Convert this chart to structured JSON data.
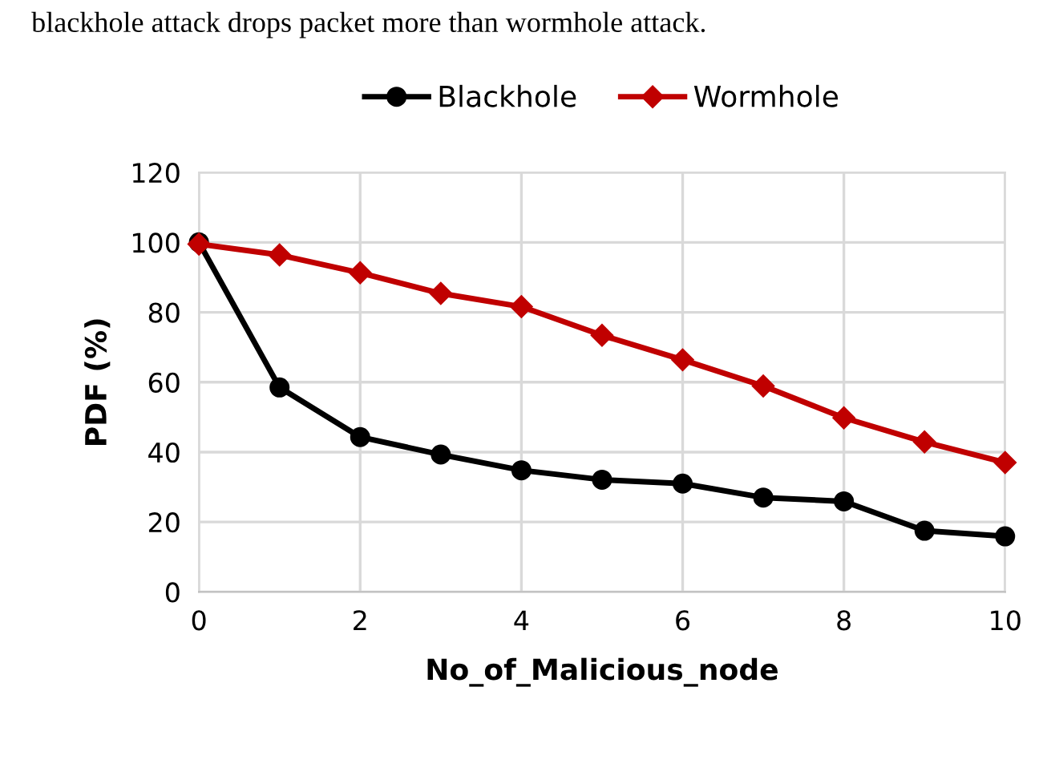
{
  "chart_data": {
    "type": "line",
    "xlabel": "No_of_Malicious_node",
    "ylabel": "PDF (%)",
    "annotations": [
      "blackhole attack drops packet more than wormhole attack."
    ],
    "x": [
      0,
      1,
      2,
      3,
      4,
      5,
      6,
      7,
      8,
      9,
      10
    ],
    "series": [
      {
        "name": "Blackhole",
        "color": "#000000",
        "marker": "circle",
        "values": [
          100,
          58.5,
          44.3,
          39.3,
          34.8,
          32.1,
          31,
          27,
          25.9,
          17.5,
          15.9
        ]
      },
      {
        "name": "Wormhole",
        "color": "#c00000",
        "marker": "diamond",
        "values": [
          99.5,
          96.4,
          91.3,
          85.4,
          81.6,
          73.4,
          66.4,
          58.9,
          49.8,
          42.9,
          37
        ]
      }
    ],
    "xlim": [
      0,
      10
    ],
    "xticks": [
      0,
      2,
      4,
      6,
      8,
      10
    ],
    "ylim": [
      0,
      120
    ],
    "yticks": [
      0,
      20,
      40,
      60,
      80,
      100,
      120
    ],
    "grid": true,
    "legend": "top",
    "line_style": "solid"
  }
}
